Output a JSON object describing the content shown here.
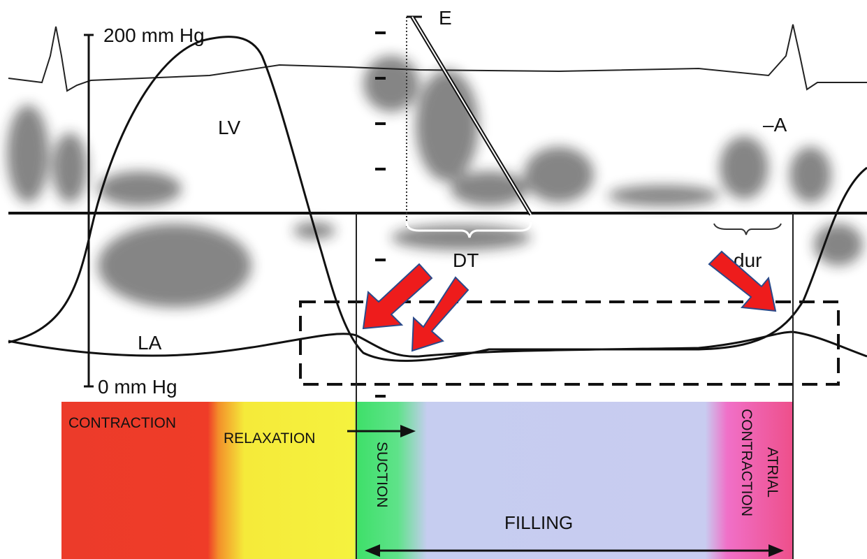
{
  "scale": {
    "top": "200 mm Hg",
    "bottom": "0 mm Hg"
  },
  "curves": {
    "lv": "LV",
    "la": "LA"
  },
  "doppler": {
    "e_wave": "E",
    "a_wave": "–A",
    "deceleration_time": "DT",
    "a_duration": "dur"
  },
  "phases": {
    "contraction": "CONTRACTION",
    "relaxation": "RELAXATION",
    "suction": "SUCTION",
    "atrial": "ATRIAL",
    "atrial_contraction": "CONTRACTION",
    "filling": "FILLING"
  }
}
